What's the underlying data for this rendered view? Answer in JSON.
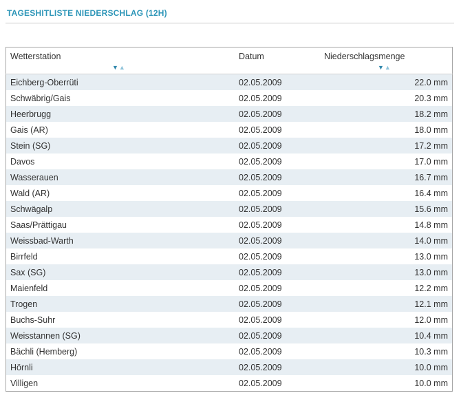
{
  "title": "TAGESHITLISTE NIEDERSCHLAG (12H)",
  "table": {
    "columns": [
      {
        "label": "Wetterstation",
        "sortable": true
      },
      {
        "label": "Datum",
        "sortable": false
      },
      {
        "label": "Niederschlagsmenge",
        "sortable": true
      }
    ],
    "sort_icons": {
      "descending": "▼",
      "ascending": "▲"
    },
    "rows": [
      {
        "station": "Eichberg-Oberrüti",
        "date": "02.05.2009",
        "amount": "22.0 mm"
      },
      {
        "station": "Schwäbrig/Gais",
        "date": "02.05.2009",
        "amount": "20.3 mm"
      },
      {
        "station": "Heerbrugg",
        "date": "02.05.2009",
        "amount": "18.2 mm"
      },
      {
        "station": "Gais (AR)",
        "date": "02.05.2009",
        "amount": "18.0 mm"
      },
      {
        "station": "Stein (SG)",
        "date": "02.05.2009",
        "amount": "17.2 mm"
      },
      {
        "station": "Davos",
        "date": "02.05.2009",
        "amount": "17.0 mm"
      },
      {
        "station": "Wasserauen",
        "date": "02.05.2009",
        "amount": "16.7 mm"
      },
      {
        "station": "Wald (AR)",
        "date": "02.05.2009",
        "amount": "16.4 mm"
      },
      {
        "station": "Schwägalp",
        "date": "02.05.2009",
        "amount": "15.6 mm"
      },
      {
        "station": "Saas/Prättigau",
        "date": "02.05.2009",
        "amount": "14.8 mm"
      },
      {
        "station": "Weissbad-Warth",
        "date": "02.05.2009",
        "amount": "14.0 mm"
      },
      {
        "station": "Birrfeld",
        "date": "02.05.2009",
        "amount": "13.0 mm"
      },
      {
        "station": "Sax (SG)",
        "date": "02.05.2009",
        "amount": "13.0 mm"
      },
      {
        "station": "Maienfeld",
        "date": "02.05.2009",
        "amount": "12.2 mm"
      },
      {
        "station": "Trogen",
        "date": "02.05.2009",
        "amount": "12.1 mm"
      },
      {
        "station": "Buchs-Suhr",
        "date": "02.05.2009",
        "amount": "12.0 mm"
      },
      {
        "station": "Weisstannen (SG)",
        "date": "02.05.2009",
        "amount": "10.4 mm"
      },
      {
        "station": "Bächli (Hemberg)",
        "date": "02.05.2009",
        "amount": "10.3 mm"
      },
      {
        "station": "Hörnli",
        "date": "02.05.2009",
        "amount": "10.0 mm"
      },
      {
        "station": "Villigen",
        "date": "02.05.2009",
        "amount": "10.0 mm"
      }
    ]
  },
  "colors": {
    "accent": "#2e96b8",
    "row_stripe": "#e7eef3",
    "table_border": "#a6a6a6",
    "sort_descending": "#2e86ab",
    "sort_ascending": "#8fc3da"
  }
}
